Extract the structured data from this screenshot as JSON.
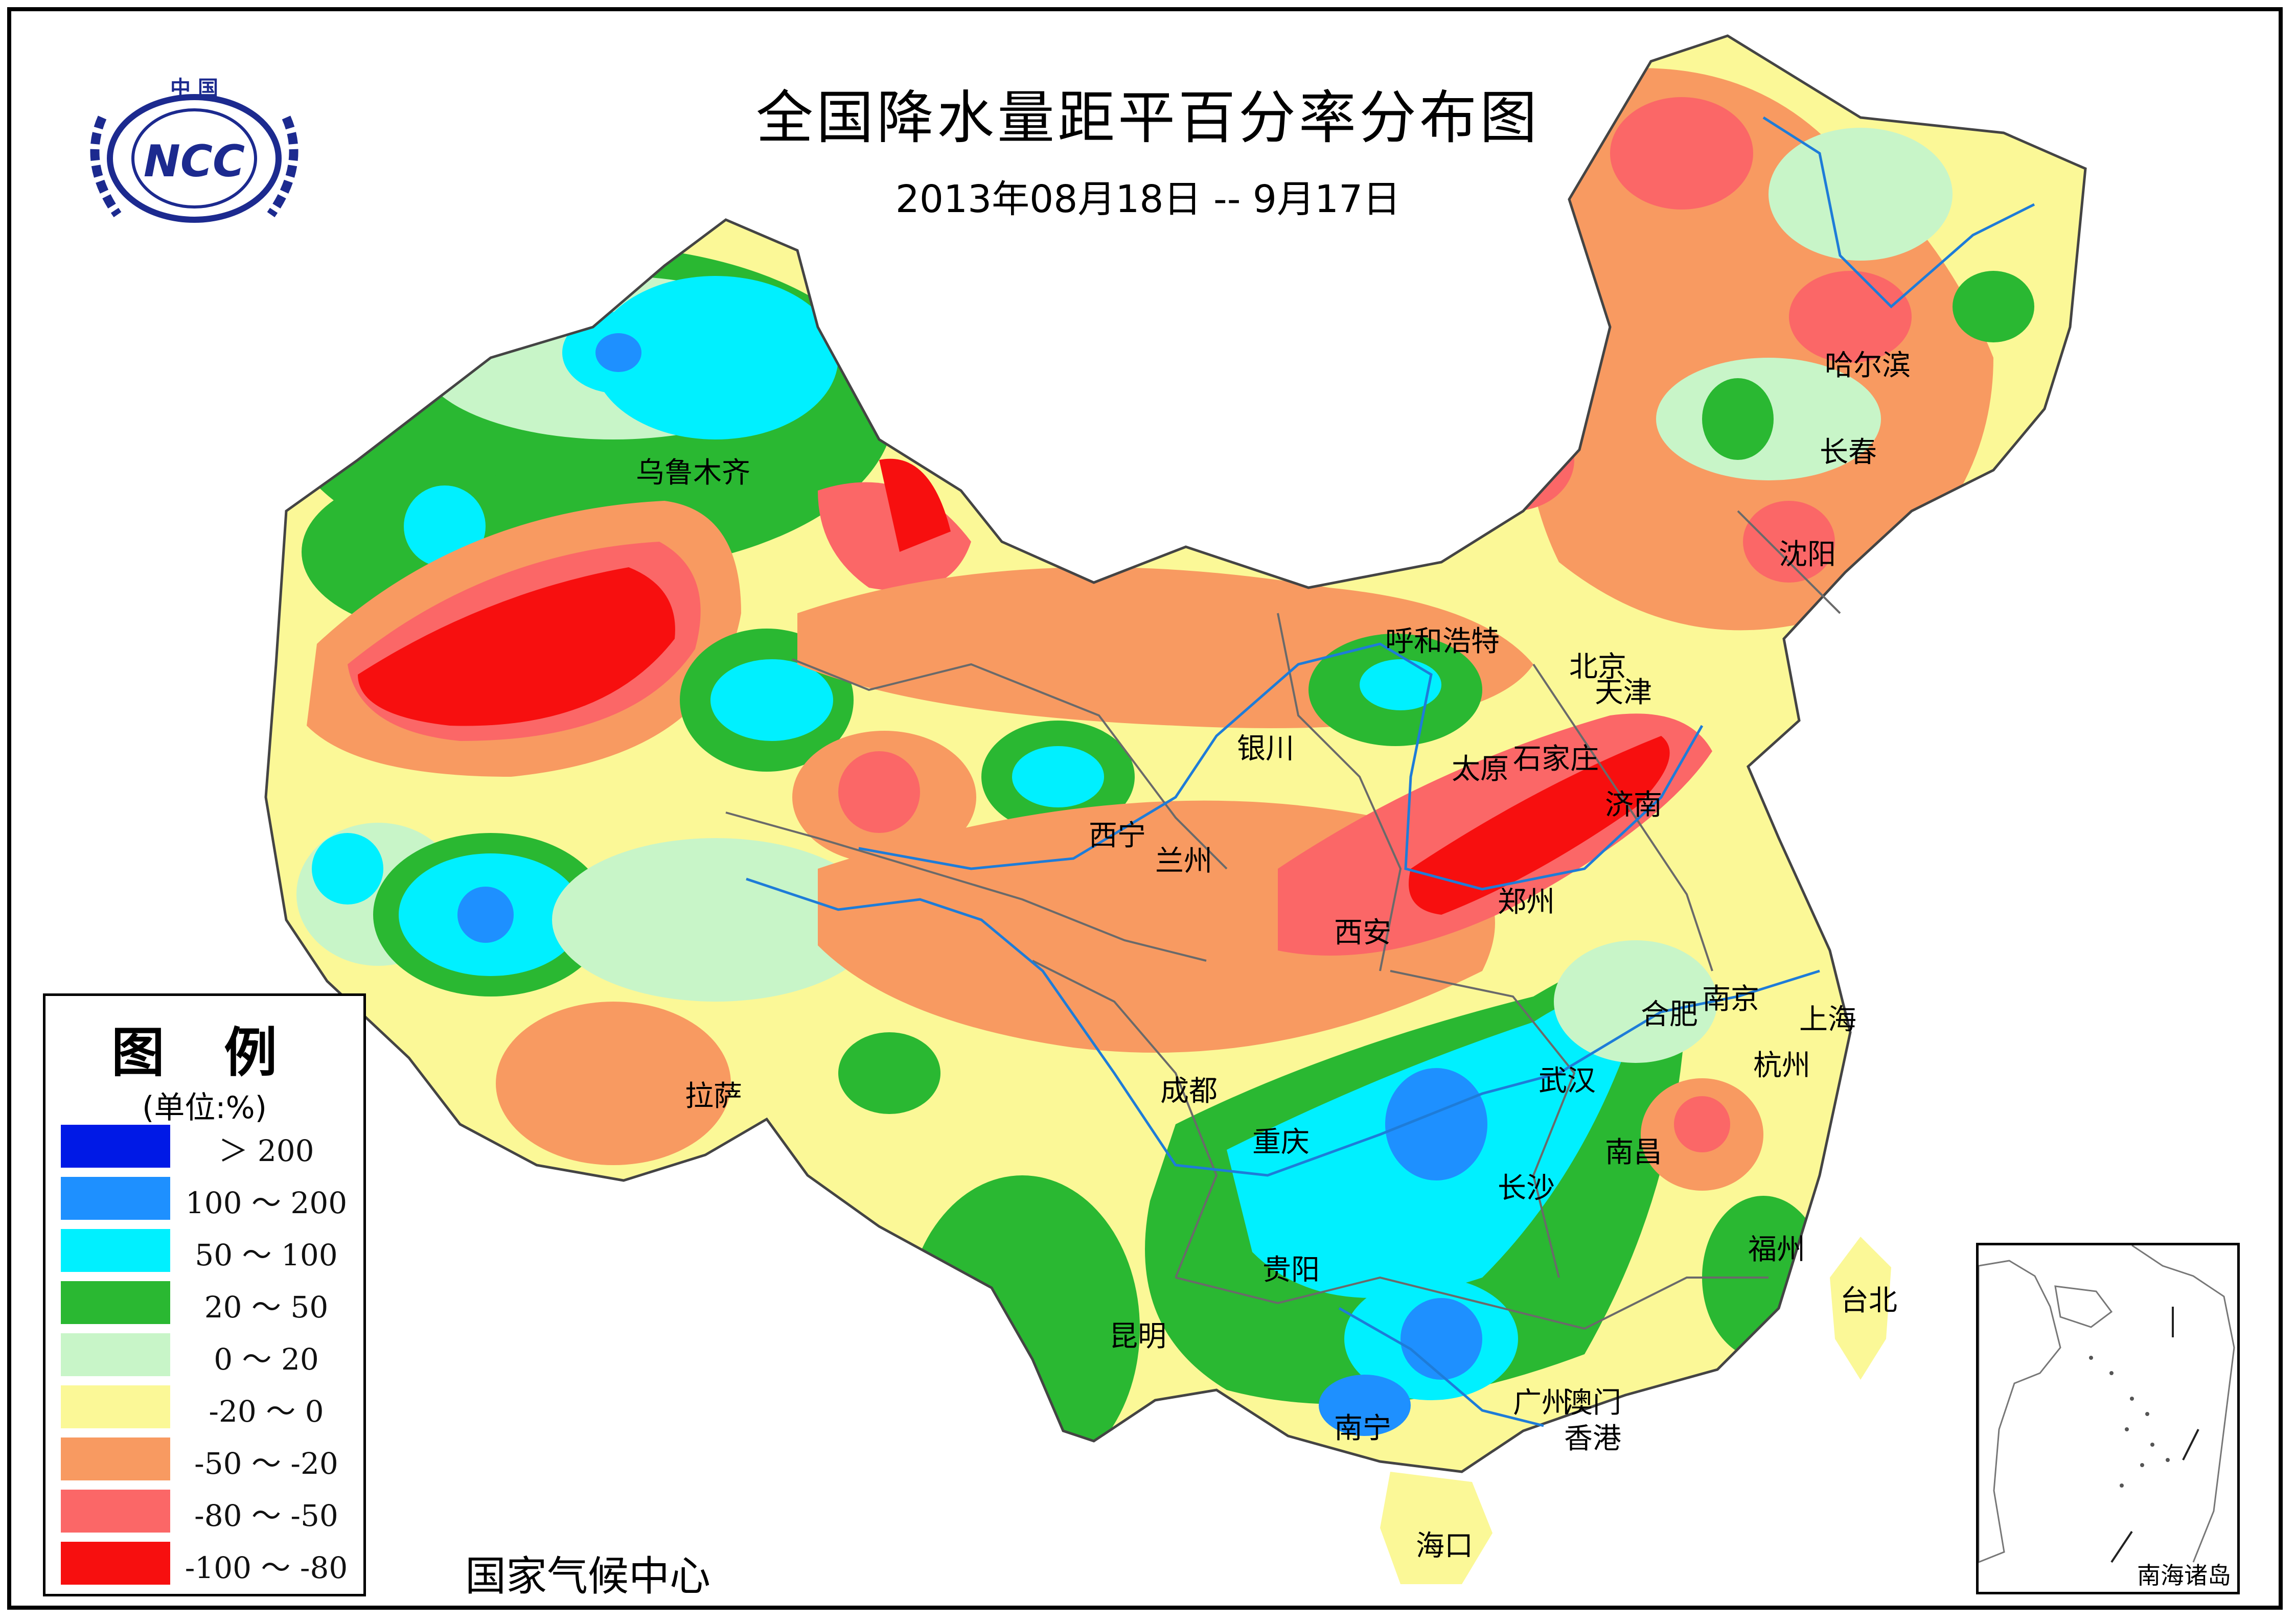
{
  "title": "全国降水量距平百分率分布图",
  "date_range": "2013年08月18日 -- 9月17日",
  "logo": {
    "country": "中 国",
    "org": "NCC"
  },
  "footer": "国家气候中心",
  "legend": {
    "title": "图 例",
    "unit": "(单位:%)",
    "items": [
      {
        "label": "＞ 200",
        "color": "#0019e6"
      },
      {
        "label": "100 ～ 200",
        "color": "#1e90ff"
      },
      {
        "label": "50 ～ 100",
        "color": "#00f0ff"
      },
      {
        "label": "20 ～ 50",
        "color": "#2ab832"
      },
      {
        "label": "0 ～ 20",
        "color": "#c8f5c8"
      },
      {
        "label": "-20 ～ 0",
        "color": "#fbf897"
      },
      {
        "label": "-50 ～ -20",
        "color": "#f89a61"
      },
      {
        "label": "-80 ～ -50",
        "color": "#fb6767"
      },
      {
        "label": "-100 ～ -80",
        "color": "#f70f0f"
      }
    ]
  },
  "cities": {
    "urumqi": "乌鲁木齐",
    "hohhot": "呼和浩特",
    "beijing": "北京",
    "tianjin": "天津",
    "harbin": "哈尔滨",
    "changchun": "长春",
    "shenyang": "沈阳",
    "yinchuan": "银川",
    "taiyuan": "太原",
    "shijiazhuang": "石家庄",
    "jinan": "济南",
    "xining": "西宁",
    "lanzhou": "兰州",
    "zhengzhou": "郑州",
    "xian": "西安",
    "hefei": "合肥",
    "nanjing": "南京",
    "shanghai": "上海",
    "hangzhou": "杭州",
    "wuhan": "武汉",
    "chengdu": "成都",
    "lhasa": "拉萨",
    "chongqing": "重庆",
    "nanchang": "南昌",
    "changsha": "长沙",
    "fuzhou": "福州",
    "guiyang": "贵阳",
    "taipei": "台北",
    "kunming": "昆明",
    "nanning": "南宁",
    "guangzhou": "广州",
    "macau": "澳门",
    "hongkong": "香港",
    "haikou": "海口"
  },
  "inset": {
    "label": "南海诸岛"
  }
}
